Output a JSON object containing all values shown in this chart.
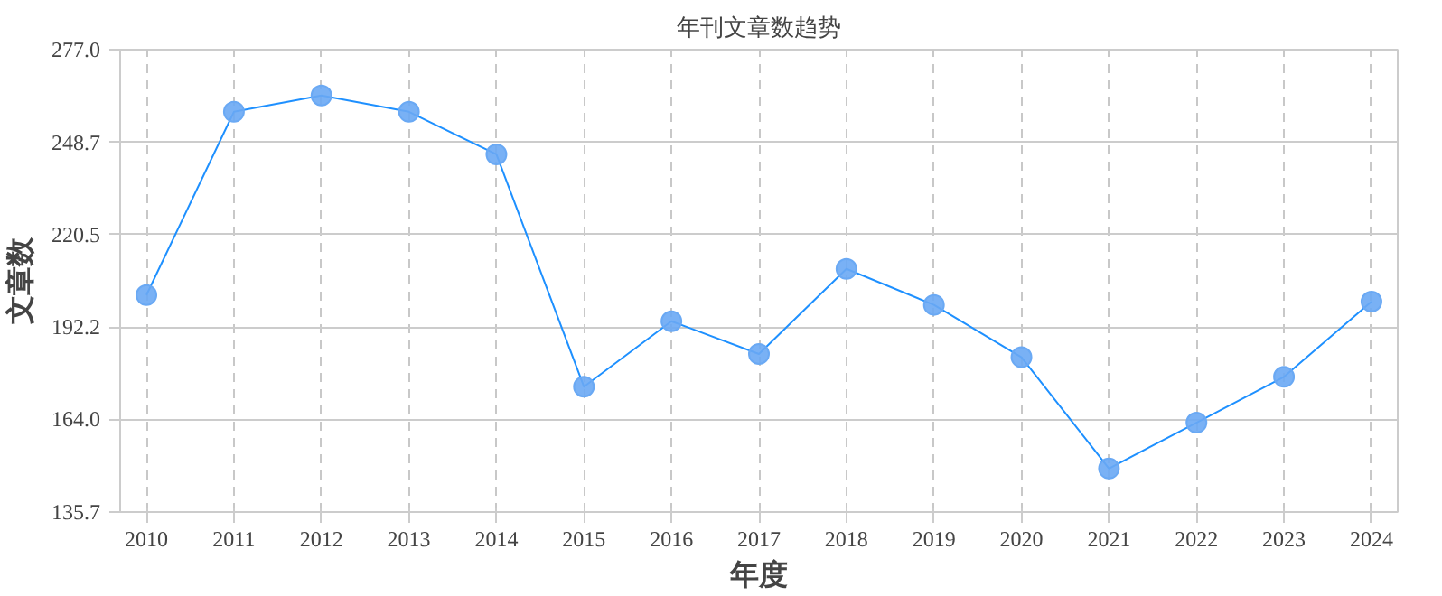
{
  "chart_data": {
    "type": "line",
    "title": "年刊文章数趋势",
    "xlabel": "年度",
    "ylabel": "文章数",
    "categories": [
      "2010",
      "2011",
      "2012",
      "2013",
      "2014",
      "2015",
      "2016",
      "2017",
      "2018",
      "2019",
      "2020",
      "2021",
      "2022",
      "2023",
      "2024"
    ],
    "series": [
      {
        "color": "#1e90ff",
        "values": [
          202,
          258,
          263,
          258,
          245,
          174,
          194,
          184,
          210,
          199,
          183,
          149,
          163,
          177,
          200
        ]
      }
    ],
    "ylim": [
      135.7,
      277.0
    ],
    "yticks": [
      135.7,
      {
        "value": 164,
        "label": "164.0"
      },
      192.2,
      220.5,
      248.7,
      {
        "value": 277,
        "label": "277.0"
      }
    ],
    "grid": true,
    "marker": "circle",
    "line_style": "solid"
  }
}
